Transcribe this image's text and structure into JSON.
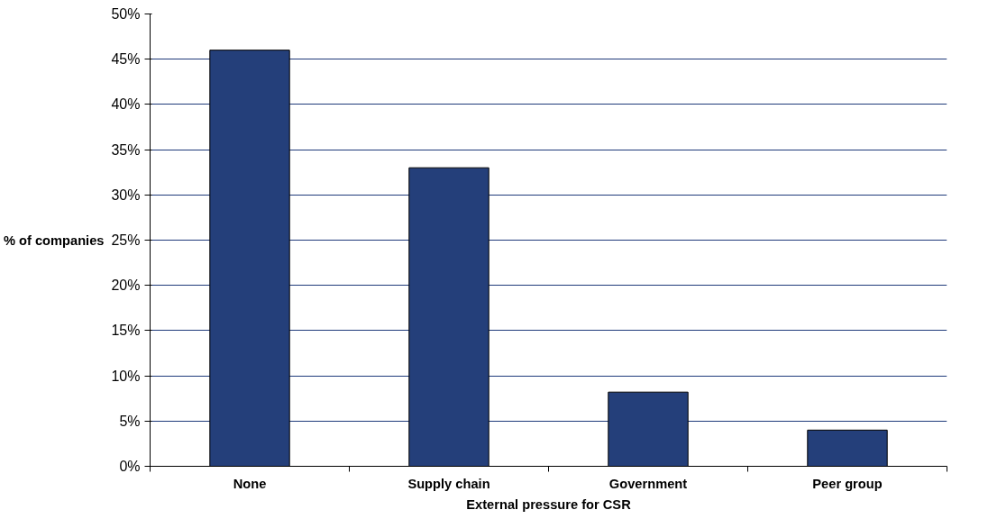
{
  "chart_data": {
    "type": "bar",
    "xlabel": "External pressure for CSR",
    "ylabel": "% of companies",
    "categories": [
      "None",
      "Supply chain",
      "Government",
      "Peer group"
    ],
    "values": [
      46,
      33,
      8.2,
      4
    ],
    "color": "#243f7a",
    "ylim": [
      0,
      50
    ],
    "yticks": [
      {
        "value": 0,
        "label": "0%"
      },
      {
        "value": 5,
        "label": "5%"
      },
      {
        "value": 10,
        "label": "10%"
      },
      {
        "value": 15,
        "label": "15%"
      },
      {
        "value": 20,
        "label": "20%"
      },
      {
        "value": 25,
        "label": "25%"
      },
      {
        "value": 30,
        "label": "30%"
      },
      {
        "value": 35,
        "label": "35%"
      },
      {
        "value": 40,
        "label": "40%"
      },
      {
        "value": 45,
        "label": "45%"
      },
      {
        "value": 50,
        "label": "50%"
      }
    ],
    "grid": "y"
  }
}
